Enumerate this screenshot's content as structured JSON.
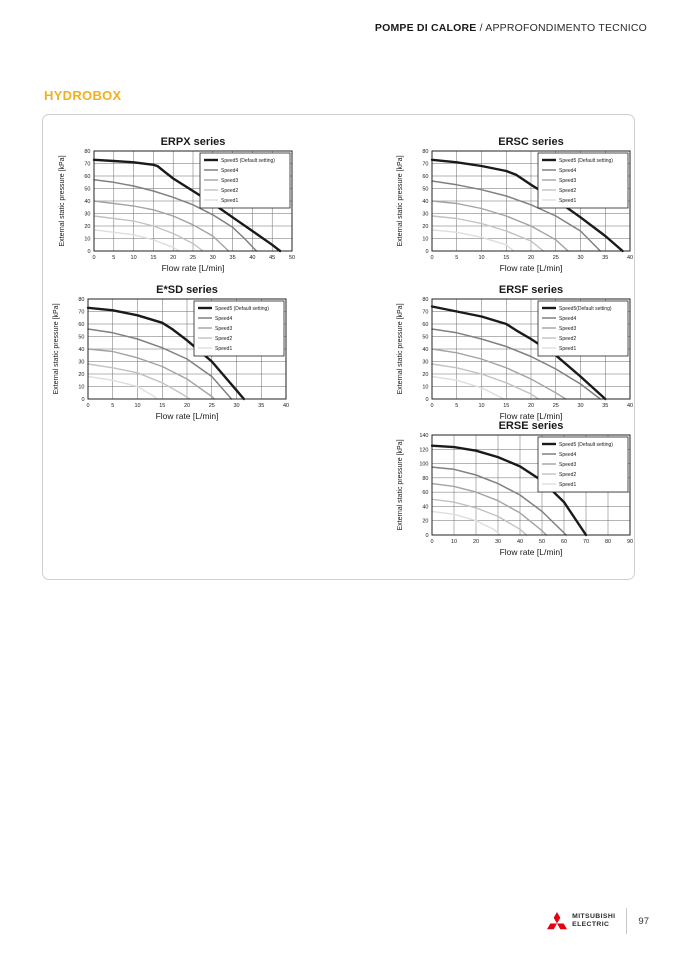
{
  "header": {
    "section": "POMPE DI CALORE",
    "separator": " / ",
    "subsection": "APPROFONDIMENTO TECNICO"
  },
  "page_heading": "HYDROBOX",
  "footer": {
    "brand_line1": "MITSUBISHI",
    "brand_line2": "ELECTRIC",
    "page_number": "97",
    "logo_color": "#E60012"
  },
  "colors": {
    "accent": "#F2B01E",
    "grid": "#6b6b6b",
    "axis": "#222222",
    "text": "#1a1a1a"
  },
  "chart_data": [
    {
      "id": "erpx",
      "type": "line",
      "title": "ERPX series",
      "xlabel": "Flow rate [L/min]",
      "ylabel": "External static pressure [kPa]",
      "xlim": [
        0,
        50
      ],
      "xtick": 5,
      "ylim": [
        0,
        80
      ],
      "ytick": 10,
      "grid": true,
      "legend_position": "top-right",
      "series": [
        {
          "name": "Speed5 (Default setting)",
          "color": "#1a1a1a",
          "width": 2.4,
          "points": [
            [
              0,
              73
            ],
            [
              5,
              72
            ],
            [
              10,
              71
            ],
            [
              15,
              69
            ],
            [
              16,
              68
            ],
            [
              18,
              63
            ],
            [
              20,
              58
            ],
            [
              25,
              48
            ],
            [
              30,
              38
            ],
            [
              35,
              27
            ],
            [
              40,
              16
            ],
            [
              45,
              5
            ],
            [
              47,
              0
            ]
          ]
        },
        {
          "name": "Speed4",
          "color": "#808080",
          "width": 1.5,
          "points": [
            [
              0,
              57
            ],
            [
              5,
              55
            ],
            [
              10,
              52
            ],
            [
              15,
              48
            ],
            [
              20,
              43
            ],
            [
              25,
              37
            ],
            [
              30,
              29
            ],
            [
              35,
              19
            ],
            [
              38,
              10
            ],
            [
              41,
              0
            ]
          ]
        },
        {
          "name": "Speed3",
          "color": "#a3a3a3",
          "width": 1.4,
          "points": [
            [
              0,
              40
            ],
            [
              5,
              38
            ],
            [
              10,
              36
            ],
            [
              15,
              33
            ],
            [
              20,
              28
            ],
            [
              25,
              21
            ],
            [
              30,
              12
            ],
            [
              34,
              0
            ]
          ]
        },
        {
          "name": "Speed2",
          "color": "#c2c2c2",
          "width": 1.4,
          "points": [
            [
              0,
              28
            ],
            [
              5,
              26
            ],
            [
              10,
              24
            ],
            [
              15,
              20
            ],
            [
              20,
              14
            ],
            [
              25,
              6
            ],
            [
              27.5,
              0
            ]
          ]
        },
        {
          "name": "Speed1",
          "color": "#dedede",
          "width": 1.4,
          "points": [
            [
              0,
              17
            ],
            [
              5,
              15
            ],
            [
              10,
              13
            ],
            [
              15,
              9
            ],
            [
              20,
              3
            ],
            [
              21.5,
              0
            ]
          ]
        }
      ]
    },
    {
      "id": "ersc",
      "type": "line",
      "title": "ERSC series",
      "xlabel": "Flow rate [L/min]",
      "ylabel": "External static pressure [kPa]",
      "xlim": [
        0,
        40
      ],
      "xtick": 5,
      "ylim": [
        0,
        80
      ],
      "ytick": 10,
      "grid": true,
      "legend_position": "top-right",
      "series": [
        {
          "name": "Speed5 (Default setting)",
          "color": "#1a1a1a",
          "width": 2.4,
          "points": [
            [
              0,
              73
            ],
            [
              5,
              71
            ],
            [
              10,
              68
            ],
            [
              15,
              64
            ],
            [
              17,
              61
            ],
            [
              20,
              53
            ],
            [
              25,
              41
            ],
            [
              30,
              27
            ],
            [
              35,
              12
            ],
            [
              38.5,
              0
            ]
          ]
        },
        {
          "name": "Speed4",
          "color": "#808080",
          "width": 1.5,
          "points": [
            [
              0,
              56
            ],
            [
              5,
              53
            ],
            [
              10,
              49
            ],
            [
              15,
              44
            ],
            [
              20,
              37
            ],
            [
              25,
              28
            ],
            [
              30,
              16
            ],
            [
              34,
              0
            ]
          ]
        },
        {
          "name": "Speed3",
          "color": "#a3a3a3",
          "width": 1.4,
          "points": [
            [
              0,
              40
            ],
            [
              5,
              38
            ],
            [
              10,
              34
            ],
            [
              15,
              28
            ],
            [
              20,
              20
            ],
            [
              25,
              9
            ],
            [
              27.5,
              0
            ]
          ]
        },
        {
          "name": "Speed2",
          "color": "#c2c2c2",
          "width": 1.4,
          "points": [
            [
              0,
              28
            ],
            [
              5,
              26
            ],
            [
              10,
              22
            ],
            [
              15,
              16
            ],
            [
              20,
              8
            ],
            [
              22.5,
              0
            ]
          ]
        },
        {
          "name": "Speed1",
          "color": "#dedede",
          "width": 1.4,
          "points": [
            [
              0,
              17
            ],
            [
              5,
              15
            ],
            [
              10,
              11
            ],
            [
              15,
              5
            ],
            [
              16.5,
              0
            ]
          ]
        }
      ]
    },
    {
      "id": "esd",
      "type": "line",
      "title": "E*SD series",
      "xlabel": "Flow rate [L/min]",
      "ylabel": "External static pressure [kPa]",
      "xlim": [
        0,
        40
      ],
      "xtick": 5,
      "ylim": [
        0,
        80
      ],
      "ytick": 10,
      "grid": true,
      "legend_position": "top-right",
      "series": [
        {
          "name": "Speed5 (Default setting)",
          "color": "#1a1a1a",
          "width": 2.4,
          "points": [
            [
              0,
              73
            ],
            [
              5,
              71
            ],
            [
              10,
              67
            ],
            [
              15,
              61
            ],
            [
              17,
              56
            ],
            [
              20,
              47
            ],
            [
              25,
              30
            ],
            [
              30,
              7
            ],
            [
              31.5,
              0
            ]
          ]
        },
        {
          "name": "Speed4",
          "color": "#808080",
          "width": 1.5,
          "points": [
            [
              0,
              56
            ],
            [
              5,
              53
            ],
            [
              10,
              48
            ],
            [
              15,
              41
            ],
            [
              20,
              32
            ],
            [
              25,
              18
            ],
            [
              29,
              0
            ]
          ]
        },
        {
          "name": "Speed3",
          "color": "#a3a3a3",
          "width": 1.4,
          "points": [
            [
              0,
              40
            ],
            [
              5,
              38
            ],
            [
              10,
              33
            ],
            [
              15,
              26
            ],
            [
              20,
              16
            ],
            [
              25,
              2
            ],
            [
              25.5,
              0
            ]
          ]
        },
        {
          "name": "Speed2",
          "color": "#c2c2c2",
          "width": 1.4,
          "points": [
            [
              0,
              28
            ],
            [
              5,
              25
            ],
            [
              10,
              21
            ],
            [
              15,
              13
            ],
            [
              19,
              4
            ],
            [
              20.5,
              0
            ]
          ]
        },
        {
          "name": "Speed1",
          "color": "#dedede",
          "width": 1.4,
          "points": [
            [
              0,
              18
            ],
            [
              5,
              15
            ],
            [
              10,
              10
            ],
            [
              13,
              3
            ],
            [
              14,
              0
            ]
          ]
        }
      ]
    },
    {
      "id": "ersf",
      "type": "line",
      "title": "ERSF series",
      "xlabel": "Flow rate [L/min]",
      "ylabel": "External static pressure [kPa]",
      "xlim": [
        0,
        40
      ],
      "xtick": 5,
      "ylim": [
        0,
        80
      ],
      "ytick": 10,
      "grid": true,
      "legend_position": "top-right",
      "series": [
        {
          "name": "Speed5(Default setting)",
          "color": "#1a1a1a",
          "width": 2.4,
          "points": [
            [
              0,
              74
            ],
            [
              5,
              70
            ],
            [
              10,
              66
            ],
            [
              15,
              60
            ],
            [
              17,
              55
            ],
            [
              20,
              48
            ],
            [
              25,
              35
            ],
            [
              30,
              18
            ],
            [
              35,
              0
            ]
          ]
        },
        {
          "name": "Speed4",
          "color": "#808080",
          "width": 1.5,
          "points": [
            [
              0,
              56
            ],
            [
              5,
              53
            ],
            [
              10,
              48
            ],
            [
              15,
              42
            ],
            [
              20,
              34
            ],
            [
              25,
              24
            ],
            [
              30,
              12
            ],
            [
              34,
              0
            ]
          ]
        },
        {
          "name": "Speed3",
          "color": "#a3a3a3",
          "width": 1.4,
          "points": [
            [
              0,
              40
            ],
            [
              5,
              37
            ],
            [
              10,
              32
            ],
            [
              15,
              25
            ],
            [
              20,
              16
            ],
            [
              25,
              5
            ],
            [
              27,
              0
            ]
          ]
        },
        {
          "name": "Speed2",
          "color": "#c2c2c2",
          "width": 1.4,
          "points": [
            [
              0,
              28
            ],
            [
              5,
              25
            ],
            [
              10,
              20
            ],
            [
              15,
              13
            ],
            [
              20,
              4
            ],
            [
              21.5,
              0
            ]
          ]
        },
        {
          "name": "Speed1",
          "color": "#dedede",
          "width": 1.4,
          "points": [
            [
              0,
              18
            ],
            [
              5,
              15
            ],
            [
              10,
              9
            ],
            [
              13,
              3
            ],
            [
              14.5,
              0
            ]
          ]
        }
      ]
    },
    {
      "id": "erse",
      "type": "line",
      "title": "ERSE series",
      "xlabel": "Flow rate [L/min]",
      "ylabel": "External static pressure [kPa]",
      "xlim": [
        0,
        90
      ],
      "xtick": 10,
      "ylim": [
        0,
        140
      ],
      "ytick": 20,
      "grid": true,
      "legend_position": "top-right",
      "series": [
        {
          "name": "Speed5 (Default setting)",
          "color": "#1a1a1a",
          "width": 2.4,
          "points": [
            [
              0,
              125
            ],
            [
              10,
              123
            ],
            [
              20,
              118
            ],
            [
              30,
              109
            ],
            [
              40,
              96
            ],
            [
              50,
              76
            ],
            [
              60,
              46
            ],
            [
              70,
              0
            ]
          ]
        },
        {
          "name": "Speed4",
          "color": "#808080",
          "width": 1.5,
          "points": [
            [
              0,
              95
            ],
            [
              10,
              92
            ],
            [
              20,
              84
            ],
            [
              30,
              72
            ],
            [
              40,
              56
            ],
            [
              50,
              33
            ],
            [
              60,
              3
            ],
            [
              61,
              0
            ]
          ]
        },
        {
          "name": "Speed3",
          "color": "#a3a3a3",
          "width": 1.4,
          "points": [
            [
              0,
              72
            ],
            [
              10,
              68
            ],
            [
              20,
              60
            ],
            [
              30,
              48
            ],
            [
              40,
              31
            ],
            [
              50,
              6
            ],
            [
              52,
              0
            ]
          ]
        },
        {
          "name": "Speed2",
          "color": "#c2c2c2",
          "width": 1.4,
          "points": [
            [
              0,
              50
            ],
            [
              10,
              46
            ],
            [
              20,
              38
            ],
            [
              30,
              26
            ],
            [
              40,
              8
            ],
            [
              43,
              0
            ]
          ]
        },
        {
          "name": "Speed1",
          "color": "#dedede",
          "width": 1.4,
          "points": [
            [
              0,
              33
            ],
            [
              10,
              29
            ],
            [
              20,
              20
            ],
            [
              28,
              8
            ],
            [
              31,
              0
            ]
          ]
        }
      ]
    }
  ]
}
